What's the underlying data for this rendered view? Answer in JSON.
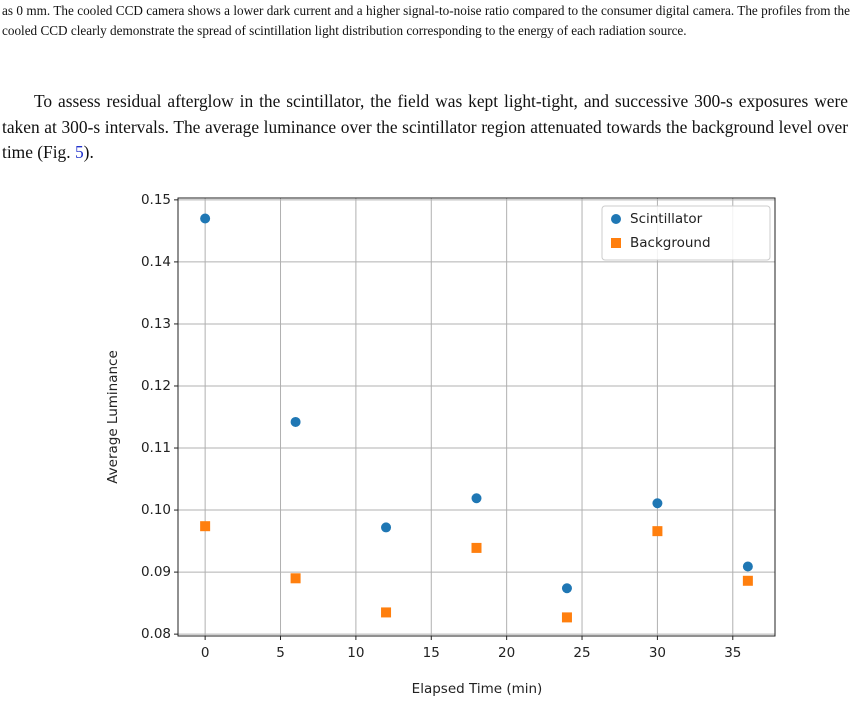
{
  "caption": "as 0 mm. The cooled CCD camera shows a lower dark current and a higher signal-to-noise ratio compared to the consumer digital camera. The profiles from the cooled CCD clearly demonstrate the spread of scintillation light distribution corresponding to the energy of each radiation source.",
  "paragraph": {
    "text_before": "To assess residual afterglow in the scintillator, the field was kept light-tight, and successive 300-s exposures were taken at 300-s intervals. The average luminance over the scintillator region attenuated towards the background level over time (Fig. ",
    "link": "5",
    "text_after": ")."
  },
  "chart_data": {
    "type": "scatter",
    "xlabel": "Elapsed Time (min)",
    "ylabel": "Average Luminance",
    "series": [
      {
        "name": "Scintillator",
        "color": "#1f77b4",
        "marker": "circle",
        "x": [
          0,
          6,
          12,
          18,
          24,
          30,
          36
        ],
        "values": [
          0.147,
          0.1142,
          0.0972,
          0.1019,
          0.0874,
          0.1011,
          0.0909
        ]
      },
      {
        "name": "Background",
        "color": "#ff7f0e",
        "marker": "square",
        "x": [
          0,
          6,
          12,
          18,
          24,
          30,
          36
        ],
        "values": [
          0.0974,
          0.089,
          0.0835,
          0.0939,
          0.0827,
          0.0966,
          0.0886
        ]
      }
    ],
    "xlim": [
      -1.8,
      37.8
    ],
    "xticks": [
      0,
      5,
      10,
      15,
      20,
      25,
      30,
      35
    ],
    "ylim": [
      0.0797,
      0.1503
    ],
    "yticks": [
      0.08,
      0.09,
      {
        "value": 0.1,
        "label": "0.10"
      },
      0.11,
      0.12,
      0.13,
      0.14,
      0.15
    ],
    "grid": true,
    "legend": "upper right"
  }
}
